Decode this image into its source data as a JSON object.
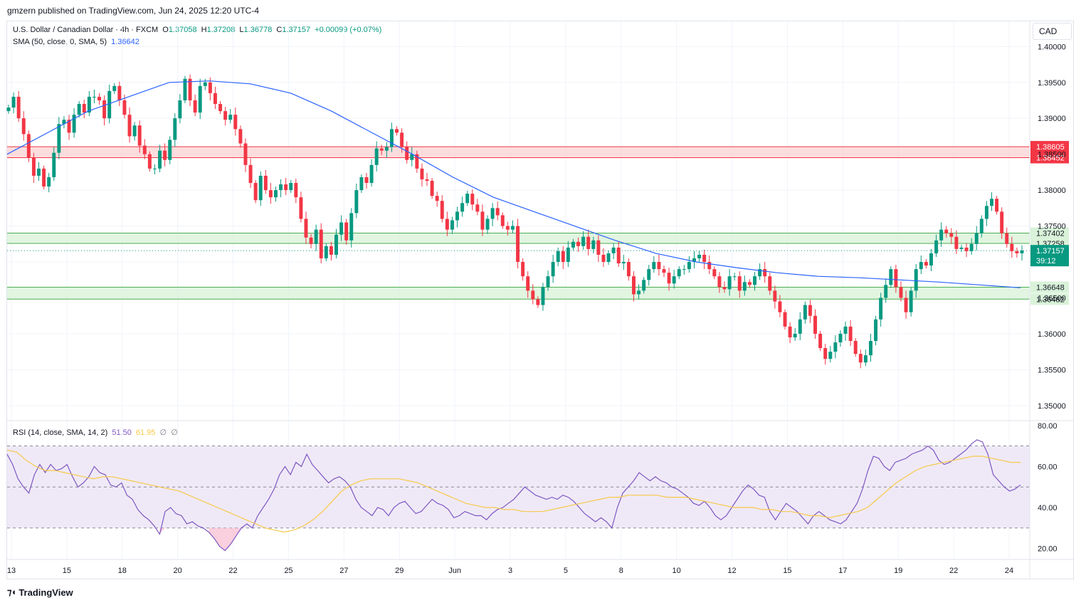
{
  "header": {
    "published": "gmzern published on TradingView.com, Jun 24, 2025 12:20 UTC-4"
  },
  "legend": {
    "symbol": "U.S. Dollar / Canadian Dollar · 4h · FXCM",
    "open_label": "O",
    "open": "1.37058",
    "high_label": "H",
    "high": "1.37208",
    "low_label": "L",
    "low": "1.36778",
    "close_label": "C",
    "close": "1.37157",
    "change": "+0.00099 (+0.07%)",
    "sma_label": "SMA (50, close, 0, SMA, 5)",
    "sma_value": "1.36642",
    "rsi_label": "RSI (14, close, SMA, 14, 2)",
    "rsi_value": "51.50",
    "rsi_ma_value": "61.95",
    "rsi_extra1": "∅",
    "rsi_extra2": "∅"
  },
  "currency": "CAD",
  "footer": {
    "brand": "TradingView",
    "logo_icon": "tradingview-logo-icon"
  },
  "colors": {
    "up": "#089981",
    "down": "#f23645",
    "sma": "#2962ff",
    "rsi": "#7e57c2",
    "rsi_ma": "#f7c948",
    "resistance_fill": "#fbd5d5",
    "resistance_line": "#f23645",
    "support_fill": "#d9f2d9",
    "support_line": "#4caf50",
    "rsi_band": "#ede7f6"
  },
  "chart_data": [
    {
      "type": "candlestick",
      "title": "U.S. Dollar / Canadian Dollar · 4h · FXCM",
      "ylim": [
        1.348,
        1.4035
      ],
      "y_ticks": [
        "1.40000",
        "1.39500",
        "1.39000",
        "1.38500",
        "1.38000",
        "1.37500",
        "1.37000",
        "1.36500",
        "1.36000",
        "1.35500",
        "1.35000"
      ],
      "x_ticks": [
        "13",
        "15",
        "18",
        "20",
        "22",
        "25",
        "27",
        "29",
        "Jun",
        "3",
        "5",
        "8",
        "10",
        "12",
        "15",
        "17",
        "19",
        "22",
        "24"
      ],
      "zones": [
        {
          "kind": "resistance",
          "top": 1.38605,
          "bottom": 1.38452,
          "top_label": "1.38605",
          "bottom_label": "1.38452"
        },
        {
          "kind": "support",
          "top": 1.37402,
          "bottom": 1.37258,
          "top_label": "1.37402",
          "bottom_label": "1.37258"
        },
        {
          "kind": "support",
          "top": 1.36648,
          "bottom": 1.36482,
          "top_label": "1.36648",
          "bottom_label": "1.36482"
        }
      ],
      "last_price": "1.37157",
      "countdown": "39:12",
      "close_series": [
        1.3915,
        1.393,
        1.39,
        1.3878,
        1.3845,
        1.382,
        1.383,
        1.3805,
        1.3818,
        1.3852,
        1.3892,
        1.3898,
        1.388,
        1.3905,
        1.392,
        1.3908,
        1.393,
        1.393,
        1.3925,
        1.39,
        1.3938,
        1.3945,
        1.3925,
        1.3905,
        1.3875,
        1.389,
        1.3862,
        1.385,
        1.383,
        1.383,
        1.3855,
        1.3842,
        1.387,
        1.39,
        1.3925,
        1.3955,
        1.3925,
        1.3908,
        1.3945,
        1.395,
        1.3935,
        1.392,
        1.391,
        1.3898,
        1.3905,
        1.3885,
        1.3865,
        1.3835,
        1.381,
        1.3786,
        1.382,
        1.38,
        1.379,
        1.38,
        1.3808,
        1.38,
        1.381,
        1.379,
        1.376,
        1.3734,
        1.3725,
        1.3745,
        1.3705,
        1.3722,
        1.371,
        1.3738,
        1.3755,
        1.373,
        1.3768,
        1.38,
        1.3818,
        1.381,
        1.3835,
        1.3858,
        1.3855,
        1.386,
        1.3885,
        1.388,
        1.386,
        1.3842,
        1.385,
        1.383,
        1.3815,
        1.3813,
        1.3792,
        1.3785,
        1.376,
        1.3745,
        1.3758,
        1.377,
        1.3782,
        1.3795,
        1.378,
        1.377,
        1.3745,
        1.376,
        1.3775,
        1.3765,
        1.375,
        1.3745,
        1.375,
        1.37,
        1.368,
        1.366,
        1.3648,
        1.364,
        1.3665,
        1.368,
        1.37,
        1.3715,
        1.37,
        1.372,
        1.3728,
        1.3722,
        1.3735,
        1.3718,
        1.373,
        1.371,
        1.37,
        1.3712,
        1.372,
        1.3698,
        1.37,
        1.368,
        1.3655,
        1.366,
        1.3675,
        1.369,
        1.37,
        1.369,
        1.3685,
        1.367,
        1.368,
        1.369,
        1.369,
        1.37,
        1.3705,
        1.371,
        1.37,
        1.369,
        1.368,
        1.3665,
        1.3662,
        1.368,
        1.368,
        1.366,
        1.3672,
        1.3668,
        1.368,
        1.369,
        1.368,
        1.366,
        1.3645,
        1.363,
        1.361,
        1.3595,
        1.36,
        1.362,
        1.364,
        1.3625,
        1.36,
        1.358,
        1.3565,
        1.3575,
        1.3588,
        1.36,
        1.361,
        1.359,
        1.3572,
        1.356,
        1.357,
        1.359,
        1.362,
        1.365,
        1.3668,
        1.369,
        1.3665,
        1.365,
        1.363,
        1.366,
        1.369,
        1.37,
        1.3695,
        1.3712,
        1.373,
        1.3745,
        1.374,
        1.3735,
        1.3718,
        1.372,
        1.3715,
        1.3725,
        1.374,
        1.376,
        1.3778,
        1.3788,
        1.377,
        1.374,
        1.3725,
        1.3715,
        1.3712,
        1.3716
      ],
      "sma_series": [
        1.385,
        1.388,
        1.391,
        1.393,
        1.395,
        1.3952,
        1.3948,
        1.3935,
        1.391,
        1.388,
        1.385,
        1.3818,
        1.379,
        1.377,
        1.375,
        1.373,
        1.3712,
        1.37,
        1.3692,
        1.3685,
        1.368,
        1.3678,
        1.3675,
        1.3672,
        1.3668,
        1.3664
      ],
      "rsi_panel": {
        "ylim": [
          15,
          82
        ],
        "y_ticks": [
          "80.00",
          "60.00",
          "40.00",
          "20.00"
        ],
        "band_top": 70,
        "band_mid": 50,
        "band_bottom": 30,
        "rsi_series": [
          66,
          61,
          54,
          50,
          47,
          56,
          61,
          57,
          61,
          58,
          59,
          61,
          55,
          50,
          52,
          55,
          60,
          57,
          56,
          51,
          50,
          52,
          46,
          44,
          39,
          36,
          34,
          31,
          27,
          38,
          40,
          37,
          36,
          32,
          33,
          31,
          30,
          28,
          25,
          21,
          19,
          22,
          26,
          30,
          32,
          30,
          36,
          40,
          44,
          49,
          56,
          60,
          56,
          62,
          60,
          66,
          61,
          58,
          55,
          52,
          54,
          55,
          53,
          50,
          44,
          40,
          38,
          36,
          40,
          39,
          36,
          40,
          42,
          43,
          40,
          37,
          38,
          41,
          44,
          42,
          41,
          39,
          35,
          36,
          38,
          37,
          36,
          36,
          34,
          37,
          39,
          40,
          42,
          44,
          47,
          50,
          48,
          46,
          45,
          44,
          45,
          44,
          46,
          45,
          43,
          40,
          37,
          35,
          33,
          35,
          33,
          30,
          40,
          47,
          50,
          53,
          57,
          55,
          53,
          55,
          53,
          52,
          50,
          49,
          47,
          45,
          42,
          41,
          43,
          40,
          36,
          34,
          36,
          40,
          44,
          48,
          51,
          49,
          46,
          45,
          38,
          34,
          38,
          42,
          40,
          38,
          35,
          32,
          36,
          38,
          36,
          34,
          33,
          32,
          34,
          38,
          42,
          49,
          58,
          65,
          64,
          60,
          58,
          62,
          63,
          64,
          66,
          67,
          68,
          70,
          68,
          63,
          61,
          62,
          64,
          66,
          68,
          71,
          73,
          72,
          66,
          56,
          53,
          50,
          48,
          49,
          51
        ],
        "ma_series": [
          68,
          67,
          63,
          60,
          58,
          58,
          57,
          56,
          55,
          54,
          55,
          55,
          54,
          53,
          52,
          51,
          50,
          49,
          48,
          46,
          44,
          42,
          40,
          38,
          36,
          34,
          32,
          30,
          29,
          28,
          29,
          31,
          34,
          38,
          43,
          48,
          51,
          53,
          54,
          54,
          54,
          54,
          53,
          52,
          50,
          48,
          46,
          44,
          42,
          41,
          40,
          40,
          39,
          39,
          38,
          38,
          38,
          39,
          40,
          41,
          42,
          43,
          44,
          45,
          45,
          46,
          46,
          46,
          46,
          45,
          45,
          45,
          44,
          43,
          42,
          41,
          40,
          40,
          40,
          39,
          39,
          38,
          38,
          37,
          36,
          36,
          35,
          36,
          37,
          38,
          40,
          44,
          48,
          52,
          55,
          58,
          60,
          61,
          62,
          63,
          64,
          65,
          65,
          64,
          63,
          62,
          62
        ]
      }
    }
  ]
}
